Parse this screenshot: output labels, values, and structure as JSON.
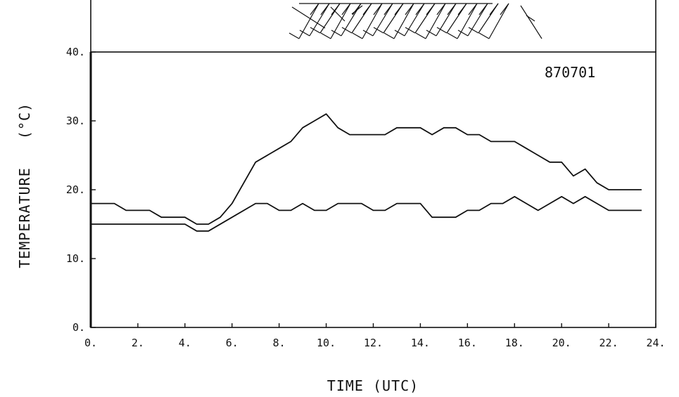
{
  "chart_data": {
    "type": "line",
    "annotation": "870701",
    "xlabel": "TIME (UTC)",
    "ylabel": "TEMPERATURE",
    "ylabel_unit": "(°C)",
    "xlim": [
      0,
      24
    ],
    "ylim": [
      0,
      40
    ],
    "x_ticks": [
      "0.",
      "2.",
      "4.",
      "6.",
      "8.",
      "10.",
      "12.",
      "14.",
      "16.",
      "18.",
      "20.",
      "22.",
      "24."
    ],
    "y_ticks": [
      "0.",
      "10.",
      "20.",
      "30.",
      "40."
    ],
    "grid": false,
    "series": [
      {
        "x": [
          0,
          1,
          1.5,
          2,
          2.5,
          3,
          3.5,
          4,
          4.5,
          5,
          5.5,
          6,
          7,
          8,
          8.5,
          9,
          9.5,
          10,
          10.5,
          11,
          11.5,
          12,
          12.5,
          13,
          13.5,
          14,
          14.5,
          15,
          15.5,
          16,
          16.5,
          17,
          17.5,
          18,
          18.5,
          19,
          19.5,
          20,
          20.5,
          21,
          21.5,
          22,
          22.5,
          23,
          23.4
        ],
        "y": [
          18,
          18,
          17,
          17,
          17,
          16,
          16,
          16,
          15,
          15,
          16,
          18,
          24,
          26,
          27,
          29,
          30,
          31,
          29,
          28,
          28,
          28,
          28,
          29,
          29,
          29,
          28,
          29,
          29,
          28,
          28,
          27,
          27,
          27,
          26,
          25,
          24,
          24,
          22,
          23,
          21,
          20,
          20,
          20,
          20
        ]
      },
      {
        "x": [
          0,
          1,
          2,
          3,
          4,
          4.5,
          5,
          6,
          7,
          7.5,
          8,
          8.5,
          9,
          9.5,
          10,
          10.5,
          11,
          11.5,
          12,
          12.5,
          13,
          13.5,
          14,
          14.5,
          15,
          15.5,
          16,
          16.5,
          17,
          17.5,
          18,
          18.5,
          19,
          19.5,
          20,
          20.5,
          21,
          21.5,
          22,
          22.5,
          23,
          23.4
        ],
        "y": [
          15,
          15,
          15,
          15,
          15,
          14,
          14,
          16,
          18,
          18,
          17,
          17,
          18,
          17,
          17,
          18,
          18,
          18,
          17,
          17,
          18,
          18,
          18,
          16,
          16,
          16,
          17,
          17,
          18,
          18,
          19,
          18,
          17,
          18,
          19,
          18,
          19,
          18,
          17,
          17,
          17,
          17
        ]
      }
    ]
  }
}
